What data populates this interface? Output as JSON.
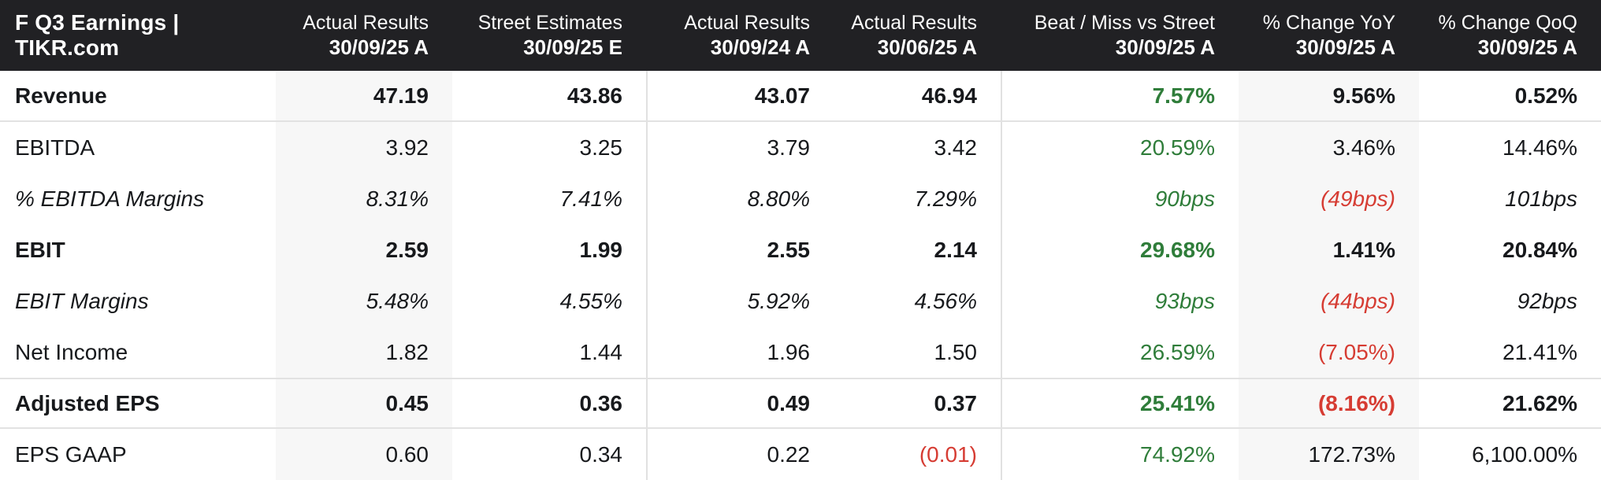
{
  "header": {
    "title": "F Q3 Earnings | TIKR.com",
    "columns": [
      {
        "label": "Actual Results",
        "date": "30/09/25 A"
      },
      {
        "label": "Street Estimates",
        "date": "30/09/25 E"
      },
      {
        "label": "Actual Results",
        "date": "30/09/24 A"
      },
      {
        "label": "Actual Results",
        "date": "30/06/25 A"
      },
      {
        "label": "Beat / Miss vs Street",
        "date": "30/09/25 A"
      },
      {
        "label": "% Change YoY",
        "date": "30/09/25 A"
      },
      {
        "label": "% Change QoQ",
        "date": "30/09/25 A"
      }
    ]
  },
  "chart_data": {
    "type": "table",
    "title": "F Q3 Earnings | TIKR.com",
    "columns": [
      "Actual Results 30/09/25 A",
      "Street Estimates 30/09/25 E",
      "Actual Results 30/09/24 A",
      "Actual Results 30/06/25 A",
      "Beat / Miss vs Street 30/09/25 A",
      "% Change YoY 30/09/25 A",
      "% Change QoQ 30/09/25 A"
    ],
    "rows": [
      {
        "label": "Revenue",
        "style": "bold",
        "separator_top": false,
        "separator_bottom": true,
        "values": [
          "47.19",
          "43.86",
          "43.07",
          "46.94",
          "7.57%",
          "9.56%",
          "0.52%"
        ],
        "value_colors": [
          "default",
          "default",
          "default",
          "default",
          "green",
          "default",
          "default"
        ]
      },
      {
        "label": "EBITDA",
        "style": "regular",
        "separator_top": false,
        "separator_bottom": false,
        "values": [
          "3.92",
          "3.25",
          "3.79",
          "3.42",
          "20.59%",
          "3.46%",
          "14.46%"
        ],
        "value_colors": [
          "default",
          "default",
          "default",
          "default",
          "green",
          "default",
          "default"
        ]
      },
      {
        "label": "% EBITDA Margins",
        "style": "italic",
        "separator_top": false,
        "separator_bottom": false,
        "values": [
          "8.31%",
          "7.41%",
          "8.80%",
          "7.29%",
          "90bps",
          "(49bps)",
          "101bps"
        ],
        "value_colors": [
          "default",
          "default",
          "default",
          "default",
          "green",
          "red",
          "default"
        ]
      },
      {
        "label": "EBIT",
        "style": "bold",
        "separator_top": false,
        "separator_bottom": false,
        "values": [
          "2.59",
          "1.99",
          "2.55",
          "2.14",
          "29.68%",
          "1.41%",
          "20.84%"
        ],
        "value_colors": [
          "default",
          "default",
          "default",
          "default",
          "green",
          "default",
          "default"
        ]
      },
      {
        "label": "EBIT Margins",
        "style": "italic",
        "separator_top": false,
        "separator_bottom": false,
        "values": [
          "5.48%",
          "4.55%",
          "5.92%",
          "4.56%",
          "93bps",
          "(44bps)",
          "92bps"
        ],
        "value_colors": [
          "default",
          "default",
          "default",
          "default",
          "green",
          "red",
          "default"
        ]
      },
      {
        "label": "Net Income",
        "style": "regular",
        "separator_top": false,
        "separator_bottom": false,
        "values": [
          "1.82",
          "1.44",
          "1.96",
          "1.50",
          "26.59%",
          "(7.05%)",
          "21.41%"
        ],
        "value_colors": [
          "default",
          "default",
          "default",
          "default",
          "green",
          "red",
          "default"
        ]
      },
      {
        "label": "Adjusted EPS",
        "style": "bold",
        "separator_top": true,
        "separator_bottom": true,
        "values": [
          "0.45",
          "0.36",
          "0.49",
          "0.37",
          "25.41%",
          "(8.16%)",
          "21.62%"
        ],
        "value_colors": [
          "default",
          "default",
          "default",
          "default",
          "green",
          "red",
          "default"
        ]
      },
      {
        "label": "EPS GAAP",
        "style": "regular",
        "separator_top": false,
        "separator_bottom": false,
        "values": [
          "0.60",
          "0.34",
          "0.22",
          "(0.01)",
          "74.92%",
          "172.73%",
          "6,100.00%"
        ],
        "value_colors": [
          "default",
          "default",
          "default",
          "red",
          "green",
          "default",
          "default"
        ]
      }
    ]
  },
  "colors": {
    "header_background": "#212124",
    "header_text": "#ffffff",
    "body_text": "#17191c",
    "positive_green": "#2f7d3a",
    "negative_red": "#d63c33",
    "shaded_column": "#f7f7f7",
    "divider": "#e1e1e1"
  }
}
